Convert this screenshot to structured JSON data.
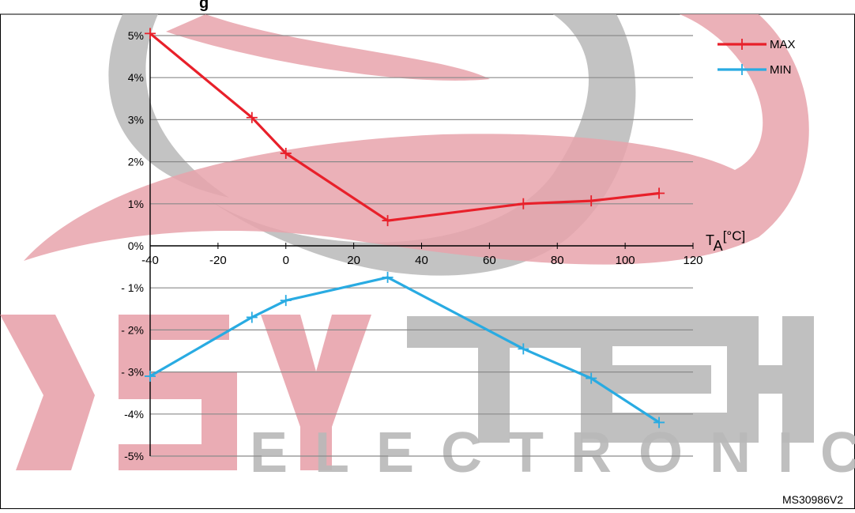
{
  "header": {
    "title_fragment": "g"
  },
  "watermark": {
    "brand": "SKYTECH",
    "sub": "ELECTRONIC"
  },
  "footer": {
    "figure_code": "MS30986V2"
  },
  "chart_data": {
    "type": "line",
    "x": [
      -40,
      -10,
      0,
      30,
      70,
      90,
      110
    ],
    "series": [
      {
        "name": "MAX",
        "color": "#e8202a",
        "values": [
          5.05,
          3.05,
          2.2,
          0.6,
          1.0,
          1.07,
          1.25
        ]
      },
      {
        "name": "MIN",
        "color": "#29abe2",
        "values": [
          -3.1,
          -1.7,
          -1.3,
          -0.75,
          -2.45,
          -3.15,
          -4.2
        ]
      }
    ],
    "xlim": [
      -40,
      120
    ],
    "ylim": [
      -5,
      5
    ],
    "x_ticks": [
      "-40",
      "-20",
      "0",
      "20",
      "40",
      "60",
      "80",
      "100",
      "120"
    ],
    "y_ticks": [
      "5%",
      "4%",
      "3%",
      "2%",
      "1%",
      "0%",
      "- 1%",
      "- 2%",
      "- 3%",
      "-4%",
      "-5%"
    ],
    "xlabel_main": "T",
    "xlabel_sub": "A",
    "xlabel_unit": "[°C]",
    "grid": true,
    "legend_position": "top-right"
  }
}
